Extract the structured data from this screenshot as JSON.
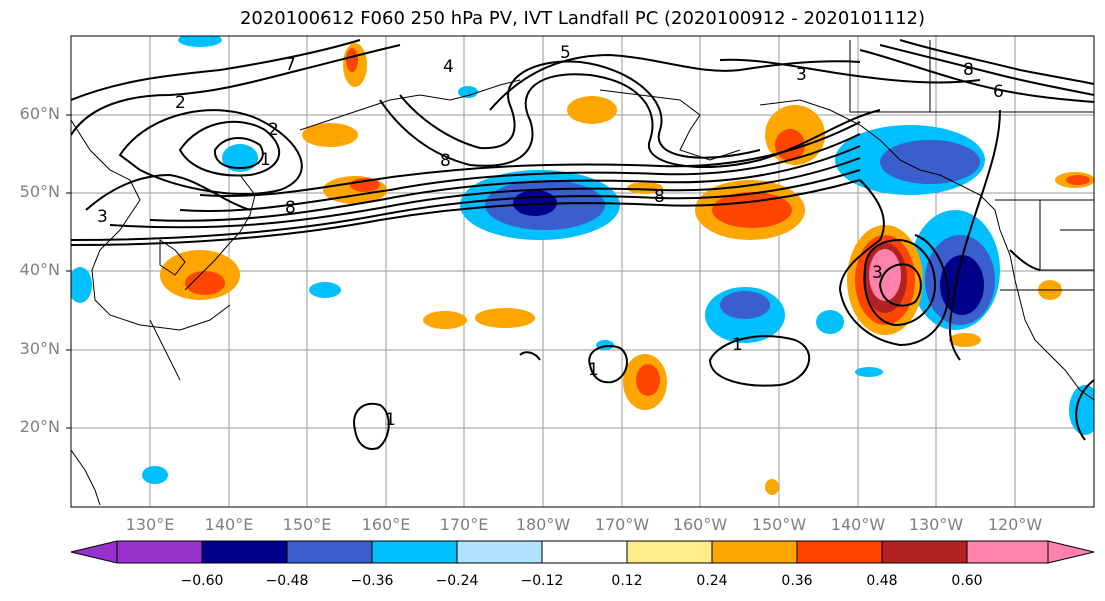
{
  "title": "2020100612 F060 250 hPa PV, IVT Landfall PC (2020100912 - 2020101112)",
  "lat_labels": [
    "60°N",
    "50°N",
    "40°N",
    "30°N",
    "20°N"
  ],
  "lon_labels": [
    "130°E",
    "140°E",
    "150°E",
    "160°E",
    "170°E",
    "180°W",
    "170°W",
    "160°W",
    "150°W",
    "140°W",
    "130°W",
    "120°W"
  ],
  "colorbar": {
    "tick_labels": [
      "−0.60",
      "−0.48",
      "−0.36",
      "−0.24",
      "−0.12",
      "0.12",
      "0.24",
      "0.36",
      "0.48",
      "0.60"
    ],
    "colors": [
      "#9932cc",
      "#00008b",
      "#3a5fcd",
      "#00bfff",
      "#b0e2ff",
      "#ffffff",
      "#ffec8b",
      "#ffa500",
      "#ff4500",
      "#b22222",
      "#ff82ab"
    ]
  },
  "contour_labels": [
    "2",
    "1",
    "3",
    "7",
    "4",
    "5",
    "6",
    "8"
  ]
}
